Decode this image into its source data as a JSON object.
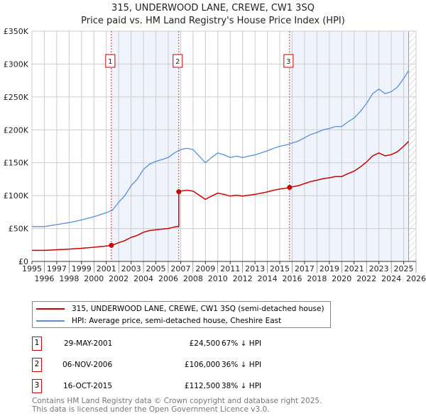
{
  "title": "315, UNDERWOOD LANE, CREWE, CW1 3SQ",
  "subtitle": "Price paid vs. HM Land Registry's House Price Index (HPI)",
  "colors": {
    "property": "#cc0000",
    "hpi": "#5b8fd4",
    "shade": "#eef3fc",
    "marker": "#cc0000"
  },
  "chart_data": {
    "type": "line",
    "xlim": [
      1995,
      2026
    ],
    "ylim": [
      0,
      350000
    ],
    "x_ticks": [
      "1995",
      "1996",
      "1997",
      "1998",
      "1999",
      "2000",
      "2001",
      "2002",
      "2003",
      "2004",
      "2005",
      "2006",
      "2007",
      "2008",
      "2009",
      "2010",
      "2011",
      "2012",
      "2013",
      "2014",
      "2015",
      "2016",
      "2017",
      "2018",
      "2019",
      "2020",
      "2021",
      "2022",
      "2023",
      "2024",
      "2025",
      "2026"
    ],
    "y_ticks": [
      {
        "v": 0,
        "label": "£0"
      },
      {
        "v": 50000,
        "label": "£50K"
      },
      {
        "v": 100000,
        "label": "£100K"
      },
      {
        "v": 150000,
        "label": "£150K"
      },
      {
        "v": 200000,
        "label": "£200K"
      },
      {
        "v": 250000,
        "label": "£250K"
      },
      {
        "v": 300000,
        "label": "£300K"
      },
      {
        "v": 350000,
        "label": "£350K"
      }
    ],
    "data_end": 2025.4,
    "hpi": {
      "name": "HPI: Average price, semi-detached house, Cheshire East",
      "x": [
        1995,
        1996,
        1997,
        1998,
        1999,
        2000,
        2001,
        2001.5,
        2002,
        2002.5,
        2003,
        2003.5,
        2004,
        2004.5,
        2005,
        2005.5,
        2006,
        2006.5,
        2007,
        2007.5,
        2008,
        2008.5,
        2009,
        2009.5,
        2010,
        2010.5,
        2011,
        2011.5,
        2012,
        2012.5,
        2013,
        2013.5,
        2014,
        2014.5,
        2015,
        2015.5,
        2016,
        2016.5,
        2017,
        2017.5,
        2018,
        2018.5,
        2019,
        2019.5,
        2020,
        2020.5,
        2021,
        2021.5,
        2022,
        2022.5,
        2023,
        2023.5,
        2024,
        2024.5,
        2025,
        2025.4
      ],
      "y": [
        53000,
        53000,
        56000,
        59000,
        63000,
        68000,
        74000,
        78000,
        90000,
        100000,
        115000,
        125000,
        140000,
        148000,
        152000,
        155000,
        158000,
        165000,
        170000,
        172000,
        170000,
        160000,
        150000,
        158000,
        165000,
        162000,
        158000,
        160000,
        158000,
        160000,
        162000,
        165000,
        168000,
        172000,
        175000,
        177000,
        180000,
        183000,
        188000,
        193000,
        196000,
        200000,
        202000,
        205000,
        205000,
        212000,
        218000,
        228000,
        240000,
        255000,
        262000,
        255000,
        258000,
        265000,
        278000,
        290000
      ]
    },
    "property": {
      "name": "315, UNDERWOOD LANE, CREWE, CW1 3SQ (semi-detached house)"
    },
    "sales": [
      {
        "id": "1",
        "x": 2001.41,
        "date": "29-MAY-2001",
        "price": 24500,
        "price_label": "£24,500",
        "hpi_diff": "67% ↓ HPI"
      },
      {
        "id": "2",
        "x": 2006.85,
        "date": "06-NOV-2006",
        "price": 106000,
        "price_label": "£106,000",
        "hpi_diff": "36% ↓ HPI"
      },
      {
        "id": "3",
        "x": 2015.79,
        "date": "16-OCT-2015",
        "price": 112500,
        "price_label": "£112,500",
        "hpi_diff": "38% ↓ HPI"
      }
    ]
  },
  "legend": {
    "property": "315, UNDERWOOD LANE, CREWE, CW1 3SQ (semi-detached house)",
    "hpi": "HPI: Average price, semi-detached house, Cheshire East"
  },
  "footer": {
    "line1": "Contains HM Land Registry data © Crown copyright and database right 2025.",
    "line2": "This data is licensed under the Open Government Licence v3.0."
  }
}
